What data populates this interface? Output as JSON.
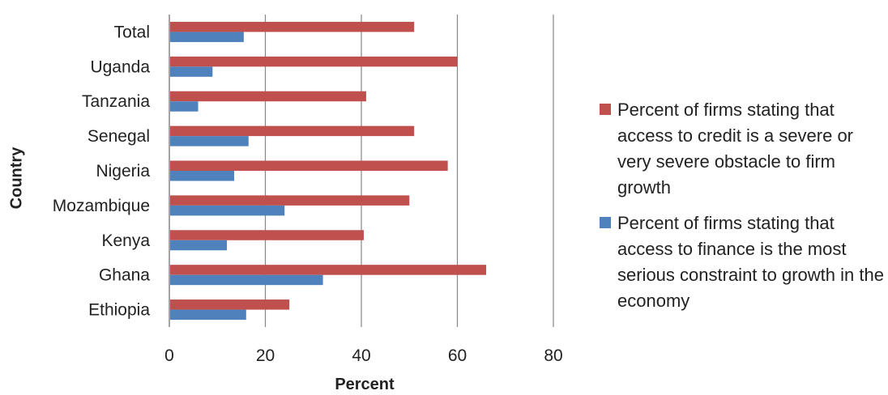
{
  "chart_data": {
    "type": "bar",
    "orientation": "horizontal",
    "categories": [
      "Ethiopia",
      "Ghana",
      "Kenya",
      "Mozambique",
      "Nigeria",
      "Senegal",
      "Tanzania",
      "Uganda",
      "Total"
    ],
    "series": [
      {
        "name": "Percent of firms stating that access to credit is a severe or very severe obstacle to firm growth",
        "color": "#c0504d",
        "values": [
          25,
          66,
          40.5,
          50,
          58,
          51,
          41,
          60,
          51
        ]
      },
      {
        "name": "Percent of firms stating that access to finance is the most serious constraint to growth in the economy",
        "color": "#4f81bd",
        "values": [
          16,
          32,
          12,
          24,
          13.5,
          16.5,
          6,
          9,
          15.5
        ]
      }
    ],
    "xlabel": "Percent",
    "ylabel": "Country",
    "xlim": [
      0,
      80
    ],
    "xticks": [
      "0",
      "20",
      "40",
      "60",
      "80"
    ],
    "grid": true,
    "legend_position": "right"
  }
}
